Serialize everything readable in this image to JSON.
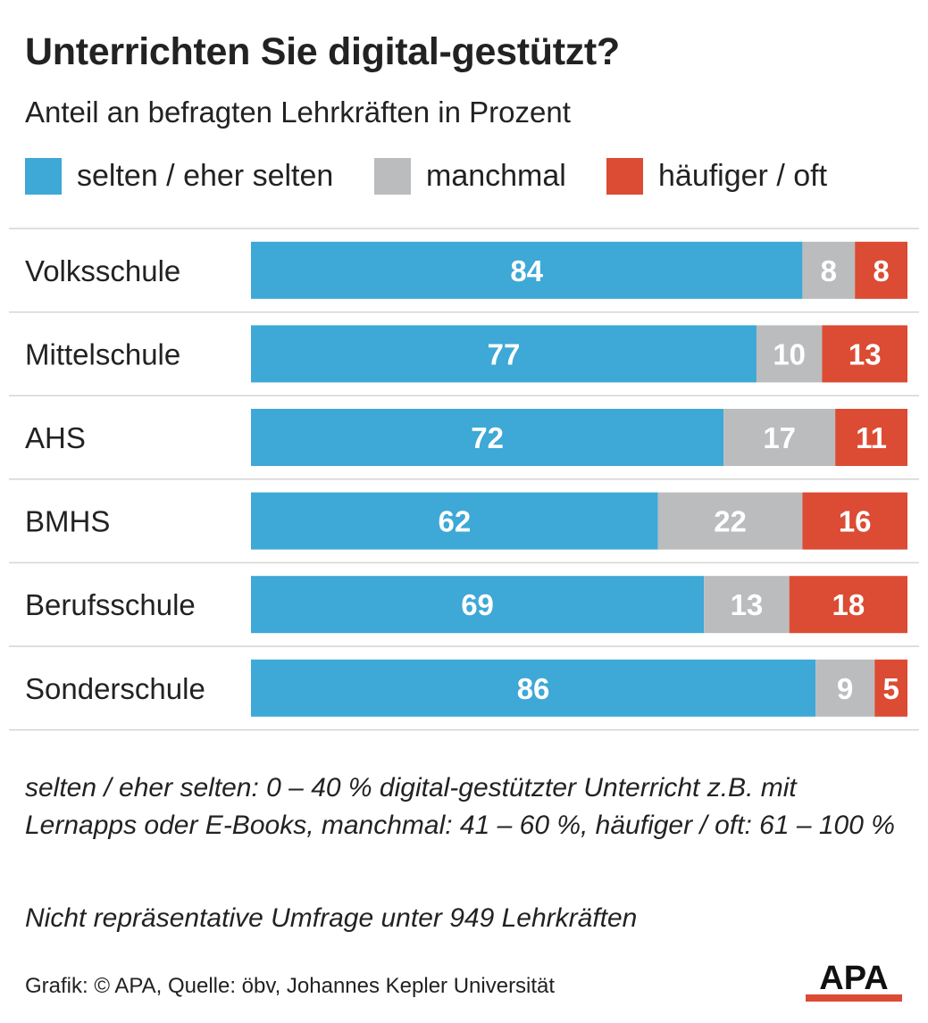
{
  "title": "Unterrichten Sie digital-gestützt?",
  "subtitle": "Anteil an befragten Lehrkräften in Prozent",
  "colors": {
    "blue": "#3ea8d6",
    "grey": "#bbbcbe",
    "red": "#dc4b33"
  },
  "chart_data": {
    "type": "bar",
    "orientation": "horizontal",
    "stacked": true,
    "categories": [
      "Volksschule",
      "Mittelschule",
      "AHS",
      "BMHS",
      "Berufsschule",
      "Sonderschule"
    ],
    "series": [
      {
        "name": "selten / eher selten",
        "color": "#3ea8d6",
        "values": [
          84,
          77,
          72,
          62,
          69,
          86
        ]
      },
      {
        "name": "manchmal",
        "color": "#bbbcbe",
        "values": [
          8,
          10,
          17,
          22,
          13,
          9
        ]
      },
      {
        "name": "häufiger / oft",
        "color": "#dc4b33",
        "values": [
          8,
          13,
          11,
          16,
          18,
          5
        ]
      }
    ],
    "xlim": [
      0,
      100
    ],
    "legend": "top",
    "grid": false
  },
  "note": "selten / eher selten: 0 – 40 % digital-gestützter Unterricht z.B. mit Lernapps oder E-Books, manchmal: 41 – 60 %, häufiger / oft: 61 – 100 %",
  "note2": "Nicht repräsentative Umfrage unter 949 Lehrkräften",
  "credit": "Grafik: © APA, Quelle: öbv, Johannes Kepler Universität",
  "logo_text": "APA"
}
